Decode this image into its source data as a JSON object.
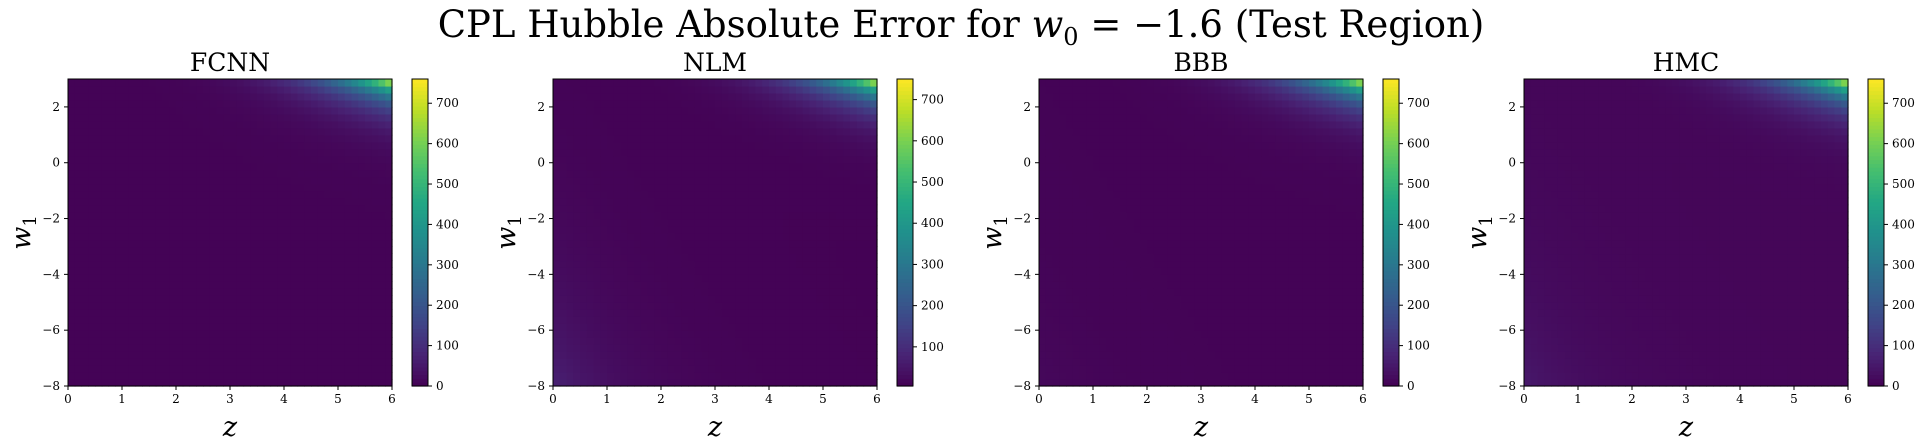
{
  "figure": {
    "title_prefix": "CPL Hubble Absolute Error for ",
    "title_math_var": "w",
    "title_math_sub": "0",
    "title_math_rest": " = −1.6",
    "title_suffix": " (Test Region)"
  },
  "chart_data": [
    {
      "type": "heatmap",
      "title": "FCNN",
      "xlabel": "z",
      "ylabel_var": "w",
      "ylabel_sub": "1",
      "xlim": [
        0,
        6
      ],
      "ylim": [
        -8,
        3
      ],
      "xticks": [
        0,
        1,
        2,
        3,
        4,
        5,
        6
      ],
      "yticks": [
        -8,
        -6,
        -4,
        -2,
        0,
        2
      ],
      "colorbar": {
        "colormap": "viridis",
        "min": 0,
        "max": 760,
        "ticks": [
          0,
          100,
          200,
          300,
          400,
          500,
          600,
          700
        ]
      },
      "features": {
        "peak_value": 760,
        "peak_location": [
          6,
          3
        ],
        "background_value": 5,
        "low_z_artifact": 0
      }
    },
    {
      "type": "heatmap",
      "title": "NLM",
      "xlabel": "z",
      "ylabel_var": "w",
      "ylabel_sub": "1",
      "xlim": [
        0,
        6
      ],
      "ylim": [
        -8,
        3
      ],
      "xticks": [
        0,
        1,
        2,
        3,
        4,
        5,
        6
      ],
      "yticks": [
        -8,
        -6,
        -4,
        -2,
        0,
        2
      ],
      "colorbar": {
        "colormap": "viridis",
        "min": 5,
        "max": 750,
        "ticks": [
          100,
          200,
          300,
          400,
          500,
          600,
          700
        ]
      },
      "features": {
        "peak_value": 750,
        "peak_location": [
          6,
          3
        ],
        "background_value": 8,
        "low_z_artifact": 70
      }
    },
    {
      "type": "heatmap",
      "title": "BBB",
      "xlabel": "z",
      "ylabel_var": "w",
      "ylabel_sub": "1",
      "xlim": [
        0,
        6
      ],
      "ylim": [
        -8,
        3
      ],
      "xticks": [
        0,
        1,
        2,
        3,
        4,
        5,
        6
      ],
      "yticks": [
        -8,
        -6,
        -4,
        -2,
        0,
        2
      ],
      "colorbar": {
        "colormap": "viridis",
        "min": 0,
        "max": 760,
        "ticks": [
          0,
          100,
          200,
          300,
          400,
          500,
          600,
          700
        ]
      },
      "features": {
        "peak_value": 760,
        "peak_location": [
          6,
          3
        ],
        "background_value": 5,
        "low_z_artifact": 12
      }
    },
    {
      "type": "heatmap",
      "title": "HMC",
      "xlabel": "z",
      "ylabel_var": "w",
      "ylabel_sub": "1",
      "xlim": [
        0,
        6
      ],
      "ylim": [
        -8,
        3
      ],
      "xticks": [
        0,
        1,
        2,
        3,
        4,
        5,
        6
      ],
      "yticks": [
        -8,
        -6,
        -4,
        -2,
        0,
        2
      ],
      "colorbar": {
        "colormap": "viridis",
        "min": 0,
        "max": 760,
        "ticks": [
          0,
          100,
          200,
          300,
          400,
          500,
          600,
          700
        ]
      },
      "features": {
        "peak_value": 760,
        "peak_location": [
          6,
          3
        ],
        "background_value": 10,
        "low_z_artifact": 45
      }
    }
  ]
}
